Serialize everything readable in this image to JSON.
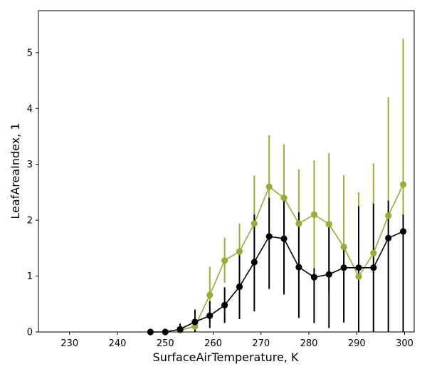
{
  "chart_data": {
    "type": "line",
    "title": "",
    "xlabel": "SurfaceAirTemperature,  K",
    "ylabel": "LeafAreaIndex,  1",
    "xlim": [
      223.5,
      302
    ],
    "ylim": [
      0,
      5.75
    ],
    "xticks": [
      230,
      240,
      250,
      260,
      270,
      280,
      290,
      300
    ],
    "yticks": [
      0,
      1,
      2,
      3,
      4,
      5
    ],
    "grid": false,
    "legend": "none",
    "series": [
      {
        "color": "#9aab3a",
        "x": [
          253.1,
          256.2,
          259.3,
          262.4,
          265.5,
          268.6,
          271.7,
          274.8,
          277.9,
          281.1,
          284.2,
          287.3,
          290.4,
          293.5,
          296.6,
          299.7
        ],
        "y": [
          0.03,
          0.1,
          0.66,
          1.28,
          1.44,
          1.94,
          2.6,
          2.4,
          1.94,
          2.1,
          1.93,
          1.52,
          0.99,
          1.41,
          2.08,
          2.64
        ],
        "err_low": [
          0.01,
          0.0,
          0.18,
          0.88,
          0.92,
          1.05,
          1.68,
          1.42,
          0.95,
          1.12,
          0.68,
          0.25,
          0.0,
          0.0,
          0.0,
          0.03
        ],
        "err_high": [
          0.06,
          0.22,
          1.17,
          1.69,
          1.94,
          2.8,
          3.52,
          3.36,
          2.91,
          3.07,
          3.2,
          2.81,
          2.5,
          3.02,
          4.2,
          5.25
        ]
      },
      {
        "color": "#000000",
        "x": [
          246.9,
          250.0,
          253.1,
          256.2,
          259.3,
          262.4,
          265.5,
          268.6,
          271.7,
          274.8,
          277.9,
          281.1,
          284.2,
          287.3,
          290.4,
          293.5,
          296.6,
          299.7
        ],
        "y": [
          0.0,
          0.0,
          0.05,
          0.18,
          0.29,
          0.48,
          0.81,
          1.25,
          1.71,
          1.67,
          1.16,
          0.98,
          1.03,
          1.15,
          1.15,
          1.15,
          1.68,
          1.8
        ],
        "err_low": [
          0.0,
          0.0,
          0.0,
          0.0,
          0.07,
          0.16,
          0.23,
          0.37,
          0.77,
          0.67,
          0.25,
          0.16,
          0.07,
          0.17,
          0.0,
          0.0,
          0.0,
          0.0
        ],
        "err_high": [
          0.0,
          0.0,
          0.15,
          0.4,
          0.55,
          0.8,
          1.38,
          2.1,
          2.4,
          2.42,
          2.14,
          1.14,
          1.9,
          1.48,
          2.25,
          2.3,
          2.35,
          2.1
        ]
      }
    ]
  }
}
